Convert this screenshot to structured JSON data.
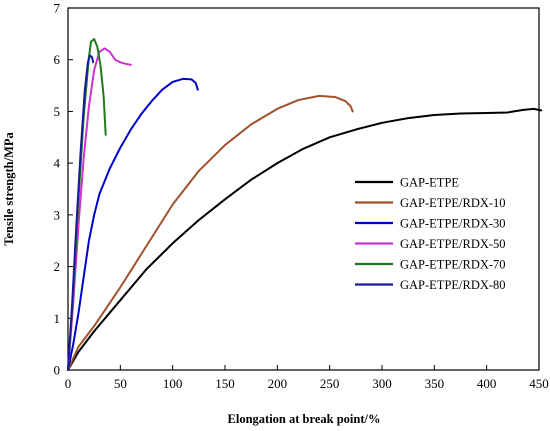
{
  "chart_data": {
    "type": "line",
    "title": "",
    "xlabel": "Elongation at break point/%",
    "ylabel": "Tensile strength/MPa",
    "xlim": [
      0,
      450
    ],
    "ylim": [
      0,
      7
    ],
    "x_ticks": [
      "0",
      "50",
      "100",
      "150",
      "200",
      "250",
      "300",
      "350",
      "400",
      "450"
    ],
    "y_ticks": [
      "0",
      "1",
      "2",
      "3",
      "4",
      "5",
      "6",
      "7"
    ],
    "grid": false,
    "legend_position": "center-right",
    "series": [
      {
        "name": "GAP-ETPE",
        "color": "#000000",
        "x": [
          0,
          10,
          25,
          50,
          75,
          100,
          125,
          150,
          175,
          200,
          225,
          250,
          275,
          300,
          325,
          350,
          375,
          400,
          420,
          435,
          445,
          452
        ],
        "y": [
          0,
          0.35,
          0.75,
          1.35,
          1.95,
          2.45,
          2.9,
          3.3,
          3.68,
          4.0,
          4.28,
          4.5,
          4.65,
          4.78,
          4.87,
          4.93,
          4.96,
          4.97,
          4.98,
          5.03,
          5.05,
          5.02
        ]
      },
      {
        "name": "GAP-ETPE/RDX-10",
        "color": "#A0522D",
        "x": [
          0,
          10,
          25,
          50,
          75,
          100,
          125,
          150,
          175,
          200,
          220,
          240,
          255,
          265,
          270,
          272
        ],
        "y": [
          0,
          0.45,
          0.85,
          1.6,
          2.4,
          3.2,
          3.85,
          4.35,
          4.75,
          5.05,
          5.22,
          5.3,
          5.28,
          5.2,
          5.1,
          5.0
        ]
      },
      {
        "name": "GAP-ETPE/RDX-30",
        "color": "#0000CC",
        "x": [
          0,
          5,
          10,
          15,
          20,
          25,
          30,
          40,
          50,
          60,
          70,
          80,
          90,
          100,
          110,
          118,
          122,
          124
        ],
        "y": [
          0,
          0.5,
          1.1,
          1.8,
          2.5,
          3.0,
          3.4,
          3.9,
          4.3,
          4.65,
          4.95,
          5.2,
          5.42,
          5.57,
          5.63,
          5.62,
          5.55,
          5.42
        ]
      },
      {
        "name": "GAP-ETPE/RDX-50",
        "color": "#CC33CC",
        "x": [
          0,
          5,
          10,
          15,
          20,
          25,
          30,
          35,
          40,
          45,
          50,
          55,
          60
        ],
        "y": [
          0,
          1.3,
          2.8,
          4.1,
          5.1,
          5.8,
          6.15,
          6.22,
          6.15,
          6.0,
          5.95,
          5.92,
          5.9
        ]
      },
      {
        "name": "GAP-ETPE/RDX-70",
        "color": "#1E7B1E",
        "x": [
          0,
          5,
          10,
          15,
          20,
          22,
          25,
          28,
          31,
          34,
          36
        ],
        "y": [
          0,
          1.5,
          3.3,
          4.9,
          6.05,
          6.35,
          6.4,
          6.25,
          5.9,
          5.3,
          4.55
        ]
      },
      {
        "name": "GAP-ETPE/RDX-80",
        "color": "#1A1A99",
        "x": [
          0,
          4,
          8,
          12,
          16,
          19,
          21,
          23,
          24
        ],
        "y": [
          0,
          1.3,
          2.8,
          4.2,
          5.4,
          5.95,
          6.08,
          6.05,
          5.95
        ]
      }
    ]
  }
}
